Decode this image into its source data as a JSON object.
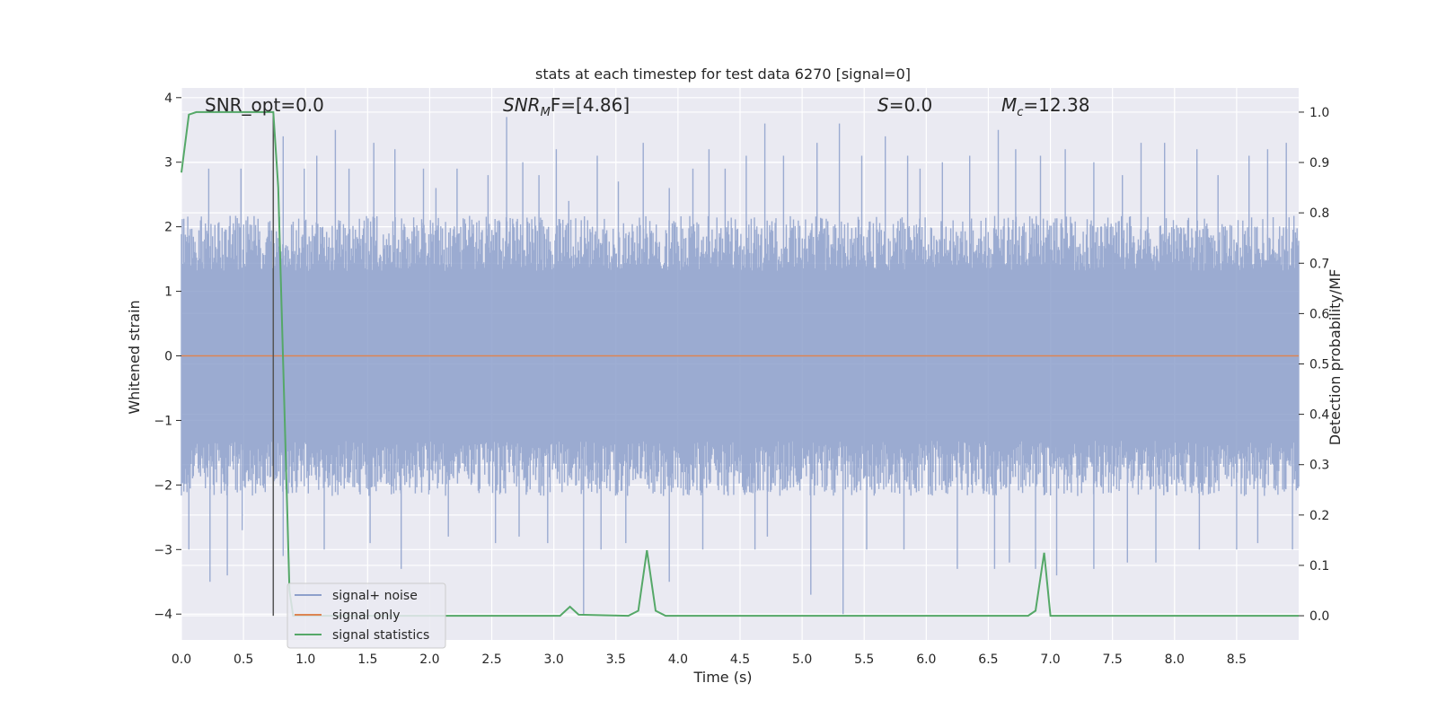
{
  "chart_data": {
    "type": "line",
    "title": "stats at each timestep for test data 6270 [signal=0]",
    "xlabel": "Time (s)",
    "ylabel": "Whitened strain",
    "y2label": "Detection probability/MF",
    "xlim": [
      0.0,
      9.0
    ],
    "ylim": [
      -4.4,
      4.15
    ],
    "y2lim": [
      -0.048,
      1.048
    ],
    "x_ticks": [
      "0.0",
      "0.5",
      "1.0",
      "1.5",
      "2.0",
      "2.5",
      "3.0",
      "3.5",
      "4.0",
      "4.5",
      "5.0",
      "5.5",
      "6.0",
      "6.5",
      "7.0",
      "7.5",
      "8.0",
      "8.5"
    ],
    "y_ticks": [
      "4",
      "3",
      "2",
      "1",
      "0",
      "−1",
      "−2",
      "−3",
      "−4"
    ],
    "y2_ticks": [
      "1.0",
      "0.9",
      "0.8",
      "0.7",
      "0.6",
      "0.5",
      "0.4",
      "0.3",
      "0.2",
      "0.1",
      "0.0"
    ],
    "grid": true,
    "legend_position": "lower-left",
    "annotations": {
      "snr_opt": "SNR_opt=0.0",
      "snr_mf_main": "SNR",
      "snr_mf_sub": "M",
      "snr_mf_rest": "F=[4.86]",
      "s_main": "S",
      "s_rest": "=0.0",
      "mc_main": "M",
      "mc_sub": "c",
      "mc_rest": "=12.38"
    },
    "vertical_marker_x": 0.74,
    "series": [
      {
        "name": "signal+ noise",
        "color": "#8da0cb",
        "noise_amplitude": 1.55,
        "upper_spike_times": [
          0.22,
          0.48,
          0.82,
          0.99,
          1.09,
          1.24,
          1.35,
          1.55,
          1.72,
          1.95,
          2.05,
          2.22,
          2.47,
          2.62,
          2.75,
          2.88,
          3.02,
          3.12,
          3.35,
          3.52,
          3.72,
          3.93,
          4.12,
          4.25,
          4.38,
          4.55,
          4.7,
          4.85,
          5.12,
          5.3,
          5.48,
          5.67,
          5.85,
          5.95,
          6.13,
          6.35,
          6.58,
          6.72,
          6.92,
          7.12,
          7.35,
          7.58,
          7.73,
          7.92,
          8.18,
          8.35,
          8.6,
          8.75,
          8.9
        ],
        "upper_spike_values": [
          2.9,
          2.9,
          3.4,
          2.9,
          3.1,
          3.5,
          2.9,
          3.3,
          3.2,
          2.9,
          2.6,
          2.9,
          2.8,
          3.7,
          3.0,
          2.8,
          3.2,
          2.4,
          3.1,
          2.7,
          3.3,
          2.6,
          2.9,
          3.2,
          2.9,
          3.1,
          3.6,
          3.1,
          3.3,
          3.6,
          3.1,
          3.4,
          3.1,
          2.9,
          3.0,
          3.1,
          3.5,
          3.2,
          3.1,
          3.2,
          3.0,
          2.8,
          3.3,
          3.3,
          3.2,
          2.8,
          3.1,
          3.2,
          3.3
        ],
        "lower_spike_times": [
          0.06,
          0.23,
          0.37,
          0.49,
          0.82,
          1.15,
          1.52,
          1.77,
          2.15,
          2.53,
          2.72,
          2.95,
          3.24,
          3.38,
          3.58,
          3.93,
          4.2,
          4.62,
          4.72,
          5.07,
          5.33,
          5.52,
          5.82,
          6.25,
          6.55,
          6.67,
          6.88,
          7.05,
          7.35,
          7.62,
          7.85,
          8.2,
          8.5,
          8.67,
          8.95
        ],
        "lower_spike_values": [
          -3.0,
          -3.5,
          -3.4,
          -2.7,
          -3.1,
          -3.0,
          -2.9,
          -3.3,
          -2.8,
          -2.9,
          -2.8,
          -2.9,
          -4.0,
          -3.0,
          -2.9,
          -3.5,
          -3.0,
          -3.0,
          -2.8,
          -3.7,
          -4.0,
          -3.0,
          -3.0,
          -3.3,
          -3.3,
          -3.2,
          -3.3,
          -3.4,
          -3.3,
          -3.2,
          -3.2,
          -3.0,
          -3.0,
          -2.9,
          -3.0
        ]
      },
      {
        "name": "signal only",
        "color": "#dd8452",
        "x": [
          0.0,
          9.0
        ],
        "y": [
          0.0,
          0.0
        ]
      },
      {
        "name": "signal statistics",
        "color": "#55a868",
        "axis": "right",
        "x": [
          0.0,
          0.06,
          0.12,
          0.5,
          0.72,
          0.74,
          0.78,
          0.82,
          0.87,
          0.9,
          3.05,
          3.13,
          3.2,
          3.6,
          3.68,
          3.75,
          3.82,
          3.9,
          4.3,
          6.82,
          6.88,
          6.95,
          7.0,
          9.0
        ],
        "y": [
          0.88,
          0.995,
          1.0,
          1.0,
          1.0,
          1.0,
          0.85,
          0.5,
          0.05,
          0.0,
          0.0,
          0.018,
          0.002,
          0.0,
          0.01,
          0.13,
          0.01,
          0.0,
          0.0,
          0.0,
          0.01,
          0.125,
          0.0,
          0.0
        ]
      }
    ]
  },
  "legend": {
    "items": [
      {
        "label": "signal+ noise",
        "color": "#8da0cb"
      },
      {
        "label": "signal only",
        "color": "#dd8452"
      },
      {
        "label": "signal statistics",
        "color": "#55a868"
      }
    ]
  }
}
